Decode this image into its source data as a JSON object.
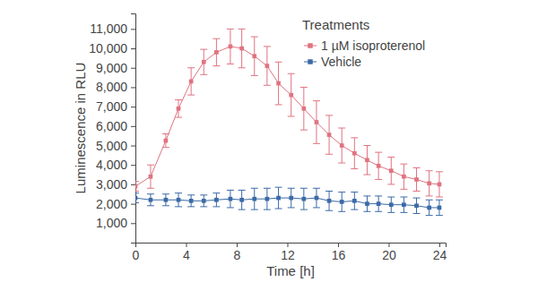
{
  "chart_data": {
    "type": "line",
    "x_label": "Time [h]",
    "y_label": "Luminescence in RLU",
    "legend_title": "Treatments",
    "legend": "top-right",
    "grid": false,
    "x": [
      0,
      1.2,
      2.4,
      3.4,
      4.4,
      5.4,
      6.4,
      7.5,
      8.4,
      9.4,
      10.4,
      11.3,
      12.3,
      13.3,
      14.3,
      15.3,
      16.3,
      17.3,
      18.3,
      19.2,
      20.2,
      21.2,
      22.2,
      23.2,
      24
    ],
    "xlim": [
      0,
      24.5
    ],
    "xticks": [
      0,
      4,
      8,
      12,
      16,
      20,
      24
    ],
    "ylim": [
      0,
      11800
    ],
    "yticks": [
      {
        "value": 1000,
        "label": "1,000"
      },
      {
        "value": 2000,
        "label": "2,000"
      },
      {
        "value": 3000,
        "label": "3,000"
      },
      {
        "value": 4000,
        "label": "4,000"
      },
      {
        "value": 5000,
        "label": "5,000"
      },
      {
        "value": 6000,
        "label": "6,000"
      },
      {
        "value": 7000,
        "label": "7,000"
      },
      {
        "value": 8000,
        "label": "8,000"
      },
      {
        "value": 9000,
        "label": "9,000"
      },
      {
        "value": 10000,
        "label": "10,000"
      },
      {
        "value": 11000,
        "label": "11,000"
      }
    ],
    "series": [
      {
        "name": "1 µM isoproterenol",
        "color": "#e07380",
        "marker": "square",
        "line_style": "solid",
        "values": [
          2900,
          3400,
          5250,
          6900,
          8300,
          9300,
          9800,
          10100,
          10000,
          9600,
          9100,
          8200,
          7600,
          6900,
          6200,
          5550,
          5000,
          4600,
          4250,
          3950,
          3700,
          3400,
          3250,
          3050,
          3000
        ],
        "errors": [
          250,
          600,
          350,
          450,
          700,
          650,
          700,
          900,
          1000,
          1000,
          1000,
          1100,
          1100,
          1100,
          1100,
          1000,
          900,
          800,
          750,
          700,
          700,
          650,
          600,
          650,
          650
        ]
      },
      {
        "name": "Vehicle",
        "color": "#3b6aa6",
        "marker": "square",
        "line_style": "solid",
        "values": [
          2300,
          2200,
          2200,
          2200,
          2150,
          2150,
          2200,
          2250,
          2200,
          2250,
          2250,
          2300,
          2300,
          2250,
          2300,
          2150,
          2100,
          2150,
          2000,
          2000,
          1950,
          1950,
          1900,
          1800,
          1800
        ],
        "errors": [
          250,
          300,
          300,
          350,
          300,
          300,
          350,
          450,
          500,
          550,
          550,
          550,
          500,
          550,
          500,
          500,
          500,
          450,
          400,
          400,
          400,
          400,
          400,
          400,
          400
        ]
      }
    ]
  }
}
